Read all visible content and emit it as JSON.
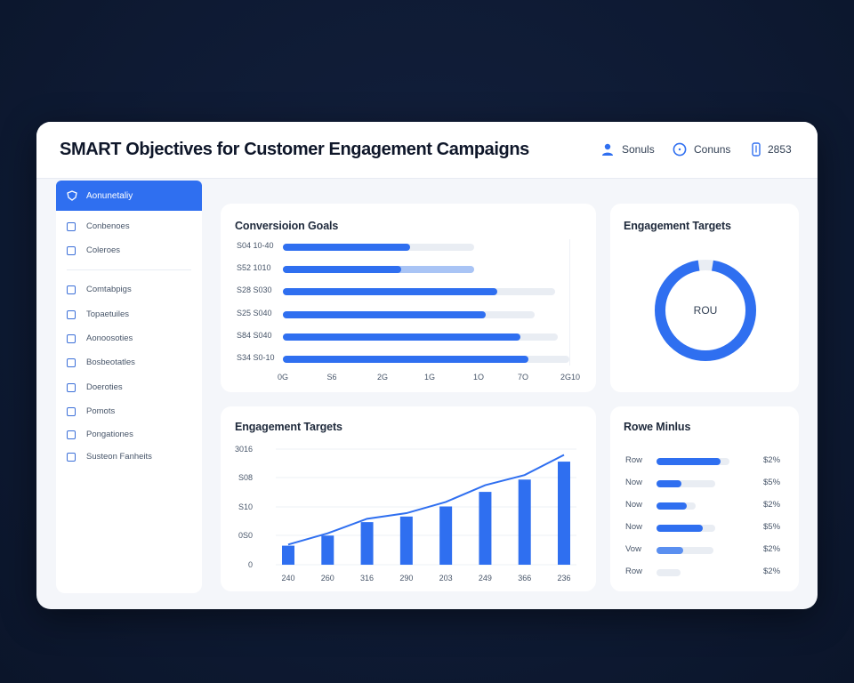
{
  "header": {
    "title": "SMART Objectives for Customer Engagement Campaigns",
    "items": [
      {
        "icon": "user-icon",
        "label": "Sonuls"
      },
      {
        "icon": "clock-icon",
        "label": "Conuns"
      },
      {
        "icon": "phone-icon",
        "label": "2853"
      }
    ]
  },
  "sidebar": {
    "active": "Aonunetaliy",
    "items": [
      "Conbenoes",
      "Coleroes",
      "Comtabpigs",
      "Topaetuiles",
      "Aonoosoties",
      "Bosbeotatles",
      "Doeroties",
      "Pomots",
      "Pongationes",
      "Susteon Fanheits"
    ]
  },
  "conversion_goals": {
    "title": "Conversioion Goals",
    "x_ticks": [
      "0G",
      "S6",
      "2G",
      "1G",
      "1O",
      "7O",
      "2G10"
    ],
    "rows": [
      {
        "label": "S04 10-40",
        "value": 0.44,
        "track": 0.66,
        "style": "blue"
      },
      {
        "label": "S52 1010",
        "value": 0.41,
        "track": 0.66,
        "style": "blue-light"
      },
      {
        "label": "S28 S030",
        "value": 0.74,
        "track": 0.94,
        "style": "blue"
      },
      {
        "label": "S25 S040",
        "value": 0.7,
        "track": 0.87,
        "style": "blue"
      },
      {
        "label": "S84 S040",
        "value": 0.82,
        "track": 0.95,
        "style": "blue"
      },
      {
        "label": "S34 S0-10",
        "value": 0.85,
        "track": 0.99,
        "style": "blue"
      }
    ]
  },
  "engagement_donut": {
    "title": "Engagement Targets",
    "center_label": "ROU",
    "fraction": 0.95
  },
  "engagement_chart": {
    "title": "Engagement Targets",
    "y_ticks": [
      "3016",
      "S08",
      "S10",
      "0S0",
      "0"
    ],
    "x_ticks": [
      "240",
      "260",
      "316",
      "290",
      "203",
      "249",
      "366",
      "236"
    ],
    "bars": [
      0.17,
      0.26,
      0.38,
      0.43,
      0.52,
      0.65,
      0.76,
      0.92
    ],
    "line": [
      0.18,
      0.28,
      0.41,
      0.46,
      0.56,
      0.71,
      0.8,
      0.98
    ]
  },
  "rowe_metrics": {
    "title": "Rowe Minlus",
    "rows": [
      {
        "label": "Row",
        "value": "$2%",
        "fill": 0.88,
        "track": 1.0,
        "style": "blue"
      },
      {
        "label": "Now",
        "value": "$5%",
        "fill": 0.34,
        "track": 0.8,
        "style": "blue"
      },
      {
        "label": "Now",
        "value": "$2%",
        "fill": 0.41,
        "track": 0.54,
        "style": "blue"
      },
      {
        "label": "Now",
        "value": "$5%",
        "fill": 0.63,
        "track": 0.8,
        "style": "blue"
      },
      {
        "label": "Vow",
        "value": "$2%",
        "fill": 0.37,
        "track": 0.78,
        "style": "light"
      },
      {
        "label": "Row",
        "value": "$2%",
        "fill": 0.0,
        "track": 0.33,
        "style": "gray"
      }
    ]
  },
  "colors": {
    "accent": "#2f6ff0",
    "accent_light": "#a9c4f5",
    "track": "#e9edf3",
    "background": "#0e1a33"
  }
}
